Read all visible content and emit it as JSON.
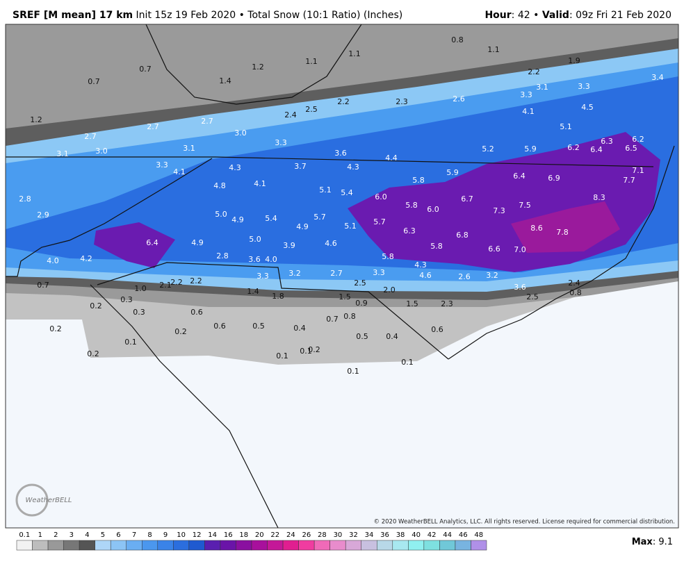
{
  "header": {
    "model": "SREF [M mean] 17 km",
    "info": "Init 15z 19 Feb 2020 • Total Snow (10:1 Ratio) (Inches)",
    "hour_label": "Hour",
    "hour": ": 42 •",
    "valid_label": "Valid",
    "valid": ": 09z Fri 21 Feb 2020"
  },
  "map": {
    "labels": [
      "0.8",
      "1.1",
      "1.1",
      "1.9",
      "1.1",
      "1.2",
      "0.7",
      "2.2",
      "3.4",
      "1.4",
      "0.7",
      "3.3",
      "3.1",
      "3.3",
      "2.6",
      "2.2",
      "2.3",
      "4.5",
      "2.5",
      "4.1",
      "2.4",
      "1.2",
      "2.7",
      "2.7",
      "5.1",
      "3.0",
      "2.7",
      "6.2",
      "6.3",
      "3.3",
      "3.1",
      "5.2",
      "5.9",
      "6.2",
      "6.4",
      "6.5",
      "3.0",
      "3.6",
      "3.1",
      "4.4",
      "3.3",
      "3.7",
      "4.3",
      "4.3",
      "7.1",
      "4.1",
      "5.9",
      "6.4",
      "6.9",
      "5.8",
      "7.7",
      "4.1",
      "4.8",
      "5.1",
      "5.4",
      "6.0",
      "8.3",
      "2.8",
      "6.7",
      "5.8",
      "7.5",
      "6.0",
      "7.3",
      "5.0",
      "2.9",
      "5.7",
      "5.4",
      "4.9",
      "5.7",
      "5.1",
      "4.9",
      "8.6",
      "6.3",
      "7.8",
      "6.8",
      "5.0",
      "6.4",
      "4.9",
      "4.6",
      "3.9",
      "5.8",
      "6.6",
      "7.0",
      "2.8",
      "5.8",
      "4.2",
      "3.6",
      "4.0",
      "4.0",
      "4.3",
      "3.3",
      "3.2",
      "2.7",
      "3.2",
      "4.6",
      "3.3",
      "2.6",
      "2.2",
      "2.2",
      "2.5",
      "2.4",
      "0.7",
      "2.1",
      "3.6",
      "1.0",
      "2.0",
      "1.4",
      "0.8",
      "1.8",
      "1.5",
      "2.5",
      "0.3",
      "0.9",
      "1.5",
      "2.3",
      "0.2",
      "0.3",
      "0.6",
      "0.8",
      "0.7",
      "0.6",
      "0.5",
      "0.4",
      "0.2",
      "0.6",
      "0.2",
      "0.5",
      "0.4",
      "0.1",
      "0.2",
      "0.1",
      "0.2",
      "0.1",
      "0.1",
      "0.1"
    ]
  },
  "footer": {
    "copyright": "© 2020 WeatherBELL Analytics, LLC. All rights reserved. License required for commercial distribution.",
    "logo": "WeatherBELL",
    "max_label": "Max",
    "max": ": 9.1",
    "scale": [
      "0.1",
      "1",
      "2",
      "3",
      "4",
      "5",
      "6",
      "7",
      "8",
      "9",
      "10",
      "12",
      "14",
      "16",
      "18",
      "20",
      "22",
      "24",
      "26",
      "28",
      "30",
      "32",
      "34",
      "36",
      "38",
      "40",
      "42",
      "44",
      "46",
      "48"
    ]
  }
}
